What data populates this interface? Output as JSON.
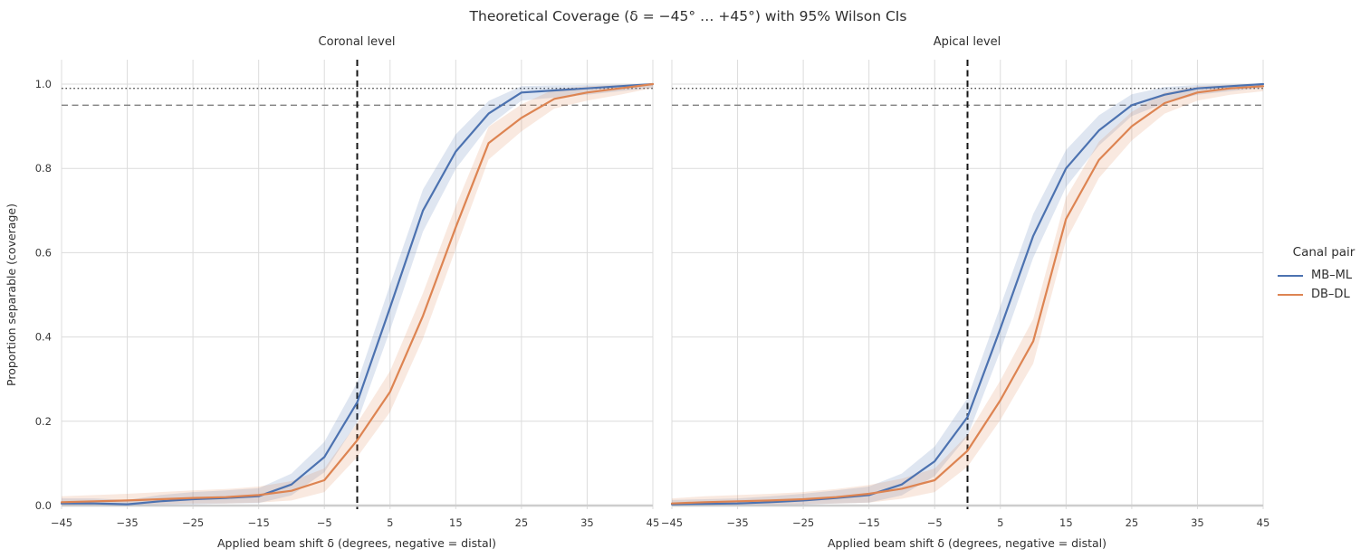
{
  "chart_data": {
    "type": "line",
    "title": "Theoretical Coverage (δ = −45° … +45°) with 95% Wilson CIs",
    "x_label": "Applied beam shift δ (degrees, negative = distal)",
    "y_label": "Proportion separable (coverage)",
    "x_range": [
      -45,
      45
    ],
    "y_range": [
      -0.012,
      1.06
    ],
    "grid": true,
    "x_ticks": {
      "values": [
        -45,
        -35,
        -25,
        -15,
        -5,
        5,
        15,
        25,
        35,
        45
      ],
      "labels": [
        "−45",
        "−35",
        "−25",
        "−15",
        "−5",
        "5",
        "15",
        "25",
        "35",
        "45"
      ]
    },
    "y_ticks": {
      "values": [
        0.0,
        0.2,
        0.4,
        0.6,
        0.8,
        1.0
      ],
      "labels": [
        "0.0",
        "0.2",
        "0.4",
        "0.6",
        "0.8",
        "1.0"
      ]
    },
    "reference_lines": {
      "dotted_y": 0.99,
      "dashed_y": 0.95,
      "vertical_dashed_x": 0
    },
    "legend": {
      "title": "Canal pair",
      "position": "center right",
      "entries": [
        {
          "label": "MB–ML",
          "color": "#4C72B0"
        },
        {
          "label": "DB–DL",
          "color": "#DD8452"
        }
      ]
    },
    "band_opacity": 0.18,
    "colors": {
      "grid": "#dcdcdc",
      "baseline": "#cdcdcd",
      "ref_dotted": "#4d4d4d",
      "ref_dashed": "#808080",
      "vline": "#141414"
    },
    "x": [
      -45,
      -40,
      -35,
      -30,
      -25,
      -20,
      -15,
      -10,
      -5,
      0,
      5,
      10,
      15,
      20,
      25,
      30,
      35,
      40,
      45
    ],
    "facets": [
      {
        "title": "Coronal level",
        "series": [
          {
            "name": "MB–ML",
            "color": "#4C72B0",
            "y": [
              0.005,
              0.005,
              0.003,
              0.01,
              0.015,
              0.018,
              0.022,
              0.05,
              0.115,
              0.245,
              0.47,
              0.7,
              0.84,
              0.93,
              0.98,
              0.985,
              0.99,
              0.995,
              1.0
            ],
            "ci_low": [
              0.001,
              0.001,
              0.0,
              0.002,
              0.003,
              0.005,
              0.006,
              0.024,
              0.079,
              0.198,
              0.416,
              0.65,
              0.799,
              0.9,
              0.961,
              0.968,
              0.975,
              0.983,
              0.991
            ],
            "ci_high": [
              0.017,
              0.017,
              0.013,
              0.025,
              0.032,
              0.036,
              0.041,
              0.076,
              0.151,
              0.292,
              0.524,
              0.75,
              0.881,
              0.96,
              0.995,
              0.997,
              0.998,
              0.999,
              1.0
            ]
          },
          {
            "name": "DB–DL",
            "color": "#DD8452",
            "y": [
              0.008,
              0.01,
              0.012,
              0.015,
              0.018,
              0.02,
              0.025,
              0.035,
              0.06,
              0.155,
              0.27,
              0.45,
              0.66,
              0.86,
              0.92,
              0.965,
              0.98,
              0.99,
              1.0
            ],
            "ci_low": [
              0.001,
              0.002,
              0.002,
              0.003,
              0.005,
              0.005,
              0.007,
              0.012,
              0.032,
              0.115,
              0.222,
              0.396,
              0.609,
              0.821,
              0.888,
              0.942,
              0.961,
              0.975,
              0.991
            ],
            "ci_high": [
              0.022,
              0.025,
              0.028,
              0.032,
              0.036,
              0.039,
              0.045,
              0.058,
              0.088,
              0.196,
              0.319,
              0.504,
              0.711,
              0.899,
              0.952,
              0.988,
              0.995,
              0.998,
              1.0
            ]
          }
        ]
      },
      {
        "title": "Apical level",
        "series": [
          {
            "name": "MB–ML",
            "color": "#4C72B0",
            "y": [
              0.003,
              0.004,
              0.005,
              0.008,
              0.012,
              0.018,
              0.025,
              0.05,
              0.105,
              0.21,
              0.42,
              0.64,
              0.8,
              0.89,
              0.95,
              0.975,
              0.99,
              0.995,
              1.0
            ],
            "ci_low": [
              0.0,
              0.001,
              0.001,
              0.001,
              0.002,
              0.005,
              0.007,
              0.024,
              0.07,
              0.165,
              0.367,
              0.588,
              0.756,
              0.854,
              0.924,
              0.955,
              0.975,
              0.983,
              0.991
            ],
            "ci_high": [
              0.013,
              0.015,
              0.017,
              0.022,
              0.028,
              0.036,
              0.045,
              0.076,
              0.14,
              0.255,
              0.473,
              0.692,
              0.844,
              0.926,
              0.976,
              0.993,
              0.998,
              0.999,
              1.0
            ]
          },
          {
            "name": "DB–DL",
            "color": "#DD8452",
            "y": [
              0.005,
              0.008,
              0.01,
              0.012,
              0.015,
              0.02,
              0.028,
              0.04,
              0.06,
              0.13,
              0.25,
              0.39,
              0.68,
              0.82,
              0.9,
              0.955,
              0.98,
              0.99,
              0.995
            ],
            "ci_low": [
              0.001,
              0.001,
              0.002,
              0.002,
              0.003,
              0.005,
              0.007,
              0.016,
              0.032,
              0.092,
              0.203,
              0.337,
              0.629,
              0.777,
              0.866,
              0.93,
              0.961,
              0.975,
              0.983
            ],
            "ci_high": [
              0.017,
              0.022,
              0.025,
              0.028,
              0.032,
              0.039,
              0.049,
              0.064,
              0.088,
              0.168,
              0.297,
              0.443,
              0.731,
              0.863,
              0.934,
              0.98,
              0.995,
              0.998,
              0.999
            ]
          }
        ]
      }
    ]
  }
}
